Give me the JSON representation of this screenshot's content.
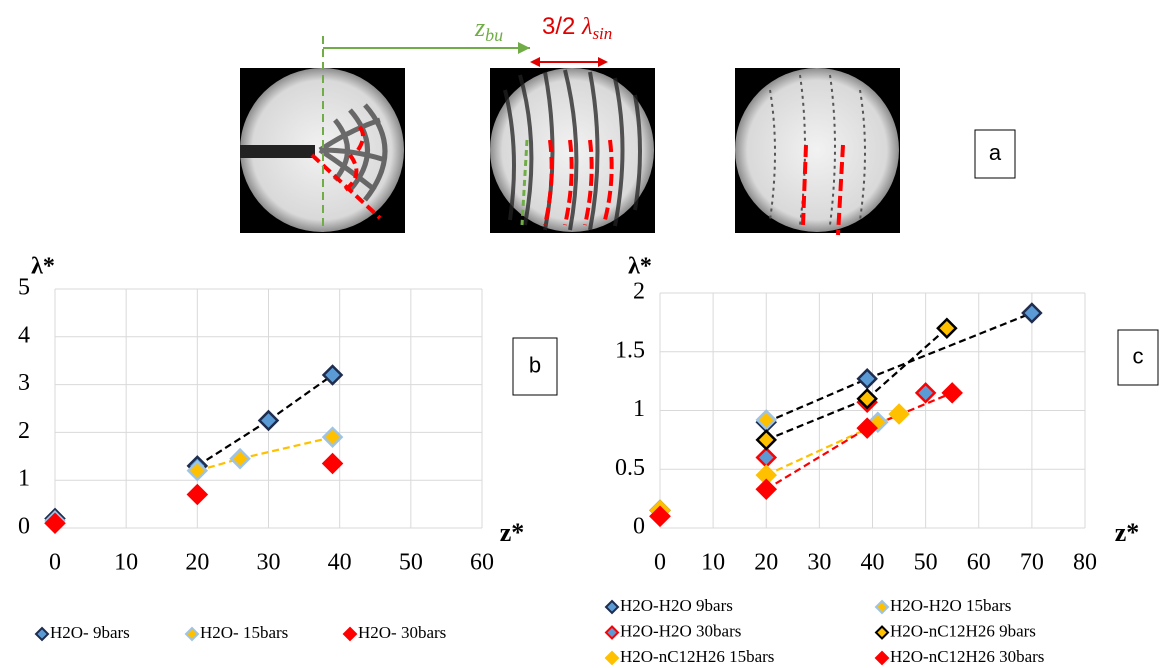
{
  "panel_a": {
    "tag": "a",
    "zbu": {
      "symbol": "z",
      "subscript": "bu"
    },
    "lambda": {
      "prefix": "3/2 ",
      "symbol": "λ",
      "subscript": "sin"
    }
  },
  "chart_data": [
    {
      "type": "scatter",
      "tag": "b",
      "x_label": "z*",
      "y_label": "λ*",
      "xlim": [
        0,
        60
      ],
      "ylim": [
        0,
        5
      ],
      "xticks": [
        0,
        10,
        20,
        30,
        40,
        50,
        60
      ],
      "yticks": [
        0,
        1,
        2,
        3,
        4,
        5
      ],
      "grid": true,
      "series": [
        {
          "name": "H2O- 9bars",
          "color": "#5b9bd5",
          "edge": "#1f2d4f",
          "line": "#000000",
          "x": [
            0,
            20,
            30,
            39
          ],
          "values": [
            0.2,
            1.3,
            2.25,
            3.2
          ]
        },
        {
          "name": "H2O- 15bars",
          "color": "#ffc000",
          "edge": "#9dc3e6",
          "line": "#ffc000",
          "x": [
            0,
            20,
            26,
            39
          ],
          "values": [
            0.15,
            1.2,
            1.45,
            1.9
          ]
        },
        {
          "name": "H2O- 30bars",
          "color": "#ff0000",
          "edge": "#ff0000",
          "line": null,
          "x": [
            0,
            20,
            39
          ],
          "values": [
            0.1,
            0.7,
            1.35
          ]
        }
      ]
    },
    {
      "type": "scatter",
      "tag": "c",
      "x_label": "z*",
      "y_label": "λ*",
      "xlim": [
        0,
        80
      ],
      "ylim": [
        0,
        2
      ],
      "xticks": [
        0,
        10,
        20,
        30,
        40,
        50,
        60,
        70,
        80
      ],
      "yticks": [
        0,
        0.5,
        1,
        1.5,
        2
      ],
      "grid": true,
      "series": [
        {
          "name": "H2O-H2O 9bars",
          "color": "#5b9bd5",
          "edge": "#1f2d4f",
          "line": "#000000",
          "x": [
            0,
            20,
            39,
            70
          ],
          "values": [
            0.15,
            0.9,
            1.27,
            1.83
          ]
        },
        {
          "name": "H2O-H2O 15bars",
          "color": "#ffc000",
          "edge": "#9dc3e6",
          "line": null,
          "x": [
            0,
            20,
            41
          ],
          "values": [
            0.15,
            0.92,
            0.9
          ]
        },
        {
          "name": "H2O-H2O 30bars",
          "color": "#5b9bd5",
          "edge": "#ff0000",
          "line": null,
          "x": [
            0,
            20,
            39,
            50
          ],
          "values": [
            0.1,
            0.6,
            1.07,
            1.15
          ]
        },
        {
          "name": "H2O-nC12H26 9bars",
          "color": "#ffc000",
          "edge": "#000000",
          "line": "#000000",
          "x": [
            0,
            20,
            39,
            54
          ],
          "values": [
            0.15,
            0.75,
            1.1,
            1.7
          ]
        },
        {
          "name": "H2O-nC12H26 15bars",
          "color": "#ffc000",
          "edge": "#ffc000",
          "line": "#ffc000",
          "x": [
            0,
            20,
            45
          ],
          "values": [
            0.15,
            0.45,
            0.97
          ]
        },
        {
          "name": "H2O-nC12H26 30bars",
          "color": "#ff0000",
          "edge": "#ff0000",
          "line": "#ff0000",
          "x": [
            0,
            20,
            39,
            55
          ],
          "values": [
            0.1,
            0.33,
            0.85,
            1.15
          ]
        }
      ]
    }
  ]
}
